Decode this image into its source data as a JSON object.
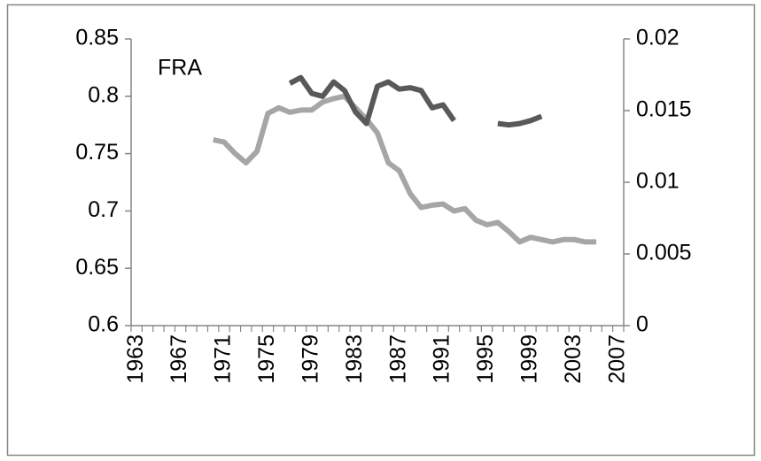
{
  "chart_data": {
    "type": "line",
    "annotation": "FRA",
    "categories": [
      "1963",
      null,
      null,
      null,
      "1967",
      null,
      null,
      null,
      "1971",
      null,
      null,
      null,
      "1975",
      null,
      null,
      null,
      "1979",
      null,
      null,
      null,
      "1983",
      null,
      null,
      null,
      "1987",
      null,
      null,
      null,
      "1991",
      null,
      null,
      null,
      "1995",
      null,
      null,
      null,
      "1999",
      null,
      null,
      null,
      "2003",
      null,
      null,
      null,
      "2007"
    ],
    "ylim": [
      0.6,
      0.85
    ],
    "yticks": [
      0.6,
      0.65,
      0.7,
      0.75,
      0.8,
      0.85
    ],
    "y2lim": [
      0,
      0.02
    ],
    "y2ticks": [
      0,
      0.005,
      0.01,
      0.015,
      0.02
    ],
    "series": [
      {
        "color": "#a6a6a6",
        "axis": "y",
        "values": [
          null,
          null,
          null,
          null,
          null,
          null,
          null,
          0.762,
          0.76,
          0.75,
          0.742,
          0.752,
          0.785,
          0.79,
          0.786,
          0.788,
          0.788,
          0.795,
          0.798,
          0.8,
          0.79,
          0.78,
          0.768,
          0.742,
          0.735,
          0.715,
          0.703,
          0.705,
          0.706,
          0.7,
          0.702,
          0.692,
          0.688,
          0.69,
          0.682,
          0.673,
          0.677,
          0.675,
          0.673,
          0.675,
          0.675,
          0.673,
          0.673,
          null,
          null
        ]
      },
      {
        "color": "#595959",
        "axis": "y2",
        "values": [
          null,
          null,
          null,
          null,
          null,
          null,
          null,
          null,
          null,
          null,
          null,
          null,
          null,
          null,
          0.0169,
          0.0173,
          0.0162,
          0.016,
          0.017,
          0.0164,
          0.0149,
          0.0141,
          0.0167,
          0.017,
          0.0165,
          0.0166,
          0.0164,
          0.0152,
          0.0154,
          0.0143,
          null,
          null,
          null,
          0.0141,
          0.014,
          0.0141,
          0.0143,
          0.0146,
          null,
          null,
          null,
          null,
          null,
          null,
          null
        ]
      }
    ]
  }
}
